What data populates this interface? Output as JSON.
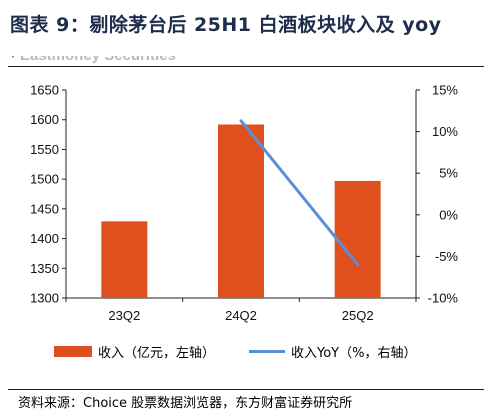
{
  "title": "图表 9：剔除茅台后 25H1 白酒板块收入及 yoy",
  "watermark": "Eastmoney Securities",
  "source": "资料来源：Choice 股票数据浏览器，东方财富证券研究所",
  "colors": {
    "bar": "#e0501f",
    "line": "#5b8fd6",
    "title": "#1f2d4d"
  },
  "chart_data": {
    "type": "bar",
    "categories": [
      "23Q2",
      "24Q2",
      "25Q2"
    ],
    "series": [
      {
        "name": "收入（亿元，左轴）",
        "type": "bar",
        "axis": "left",
        "values": [
          1429,
          1592,
          1497
        ]
      },
      {
        "name": "收入YoY（%，右轴）",
        "type": "line",
        "axis": "right",
        "values": [
          null,
          11.3,
          -6.0
        ]
      }
    ],
    "y_left": {
      "min": 1300,
      "max": 1650,
      "step": 50,
      "ticks": [
        "1650",
        "1600",
        "1550",
        "1500",
        "1450",
        "1400",
        "1350",
        "1300"
      ]
    },
    "y_right": {
      "min": -10,
      "max": 15,
      "step": 5,
      "ticks": [
        "15%",
        "10%",
        "5%",
        "0%",
        "-5%",
        "-10%"
      ]
    },
    "legend_position": "bottom",
    "grid": false
  }
}
